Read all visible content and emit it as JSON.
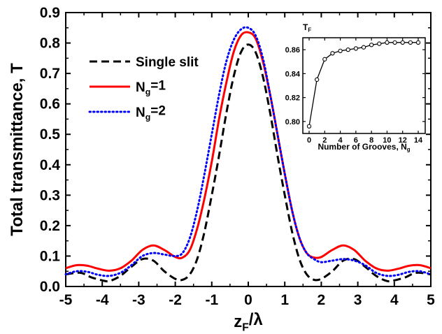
{
  "chart_data": [
    {
      "type": "line",
      "xlabel": "z_F/λ",
      "ylabel": "Total transmittance, T",
      "xlim": [
        -5,
        5
      ],
      "ylim": [
        0,
        0.9
      ],
      "x_ticks": [
        "-5",
        "-4",
        "-3",
        "-2",
        "-1",
        "0",
        "1",
        "2",
        "3",
        "4",
        "5"
      ],
      "y_ticks": [
        "0.0",
        "0.1",
        "0.2",
        "0.3",
        "0.4",
        "0.5",
        "0.6",
        "0.7",
        "0.8",
        "0.9"
      ],
      "legend_position": "top-left",
      "series": [
        {
          "name": "Single slit",
          "color": "#000000",
          "style": "dashed",
          "x": [
            -5,
            -4.6,
            -4.3,
            -4,
            -3.8,
            -3.5,
            -3.2,
            -2.9,
            -2.6,
            -2.3,
            -2,
            -1.8,
            -1.6,
            -1.4,
            -1.2,
            -1,
            -0.8,
            -0.6,
            -0.4,
            -0.2,
            0,
            0.2,
            0.4,
            0.6,
            0.8,
            1,
            1.2,
            1.4,
            1.6,
            1.8,
            2,
            2.3,
            2.6,
            2.9,
            3.2,
            3.5,
            3.8,
            4,
            4.3,
            4.6,
            5
          ],
          "y": [
            0.04,
            0.045,
            0.03,
            0.02,
            0.018,
            0.035,
            0.065,
            0.09,
            0.085,
            0.05,
            0.025,
            0.022,
            0.04,
            0.09,
            0.18,
            0.3,
            0.43,
            0.57,
            0.69,
            0.77,
            0.795,
            0.77,
            0.69,
            0.57,
            0.43,
            0.3,
            0.18,
            0.09,
            0.04,
            0.022,
            0.025,
            0.05,
            0.085,
            0.09,
            0.065,
            0.035,
            0.018,
            0.02,
            0.03,
            0.045,
            0.04
          ]
        },
        {
          "name": "N_g=1",
          "color": "#ff0000",
          "style": "solid",
          "x": [
            -5,
            -4.7,
            -4.4,
            -4.1,
            -3.8,
            -3.5,
            -3.2,
            -2.9,
            -2.6,
            -2.3,
            -2,
            -1.8,
            -1.6,
            -1.4,
            -1.2,
            -1,
            -0.8,
            -0.6,
            -0.4,
            -0.2,
            0,
            0.2,
            0.4,
            0.6,
            0.8,
            1,
            1.2,
            1.4,
            1.6,
            1.8,
            2,
            2.3,
            2.6,
            2.9,
            3.2,
            3.5,
            3.8,
            4.1,
            4.4,
            4.7,
            5
          ],
          "y": [
            0.06,
            0.07,
            0.068,
            0.058,
            0.052,
            0.06,
            0.085,
            0.12,
            0.135,
            0.12,
            0.097,
            0.095,
            0.12,
            0.19,
            0.29,
            0.41,
            0.55,
            0.67,
            0.77,
            0.825,
            0.835,
            0.815,
            0.74,
            0.63,
            0.5,
            0.37,
            0.25,
            0.16,
            0.11,
            0.095,
            0.097,
            0.12,
            0.135,
            0.12,
            0.085,
            0.06,
            0.052,
            0.058,
            0.068,
            0.07,
            0.06
          ]
        },
        {
          "name": "N_g=2",
          "color": "#0000ff",
          "style": "dotted",
          "x": [
            -5,
            -4.7,
            -4.4,
            -4.1,
            -3.8,
            -3.5,
            -3.2,
            -2.9,
            -2.6,
            -2.3,
            -2,
            -1.8,
            -1.6,
            -1.4,
            -1.2,
            -1,
            -0.8,
            -0.6,
            -0.4,
            -0.2,
            0,
            0.2,
            0.4,
            0.6,
            0.8,
            1,
            1.2,
            1.4,
            1.6,
            1.8,
            2,
            2.3,
            2.6,
            2.9,
            3.2,
            3.5,
            3.8,
            4.1,
            4.4,
            4.7,
            5
          ],
          "y": [
            0.04,
            0.05,
            0.048,
            0.038,
            0.035,
            0.045,
            0.07,
            0.1,
            0.11,
            0.105,
            0.1,
            0.11,
            0.16,
            0.25,
            0.37,
            0.5,
            0.63,
            0.74,
            0.81,
            0.845,
            0.85,
            0.825,
            0.75,
            0.63,
            0.5,
            0.37,
            0.25,
            0.16,
            0.11,
            0.09,
            0.08,
            0.085,
            0.09,
            0.085,
            0.07,
            0.045,
            0.035,
            0.038,
            0.048,
            0.05,
            0.04
          ]
        }
      ]
    },
    {
      "type": "line",
      "title": "T_F",
      "xlabel": "Number of Grooves, N_g",
      "xlim": [
        0,
        14
      ],
      "ylim": [
        0.79,
        0.87
      ],
      "x_ticks": [
        "0",
        "2",
        "4",
        "6",
        "8",
        "10",
        "12",
        "14"
      ],
      "y_ticks": [
        "0.80",
        "0.82",
        "0.84",
        "0.86"
      ],
      "series": [
        {
          "color": "#000000",
          "marker": "open-circle",
          "x": [
            0,
            1,
            2,
            3,
            4,
            5,
            6,
            7,
            8,
            9,
            10,
            11,
            12,
            13,
            14
          ],
          "y": [
            0.796,
            0.835,
            0.852,
            0.857,
            0.859,
            0.86,
            0.861,
            0.862,
            0.864,
            0.865,
            0.866,
            0.866,
            0.866,
            0.866,
            0.866
          ]
        }
      ]
    }
  ]
}
